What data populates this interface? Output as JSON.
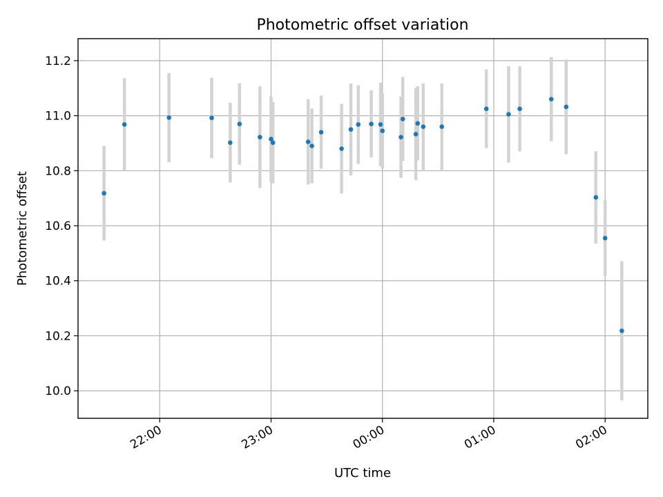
{
  "chart_data": {
    "type": "scatter",
    "title": "Photometric offset variation",
    "xlabel": "UTC time",
    "ylabel": "Photometric offset",
    "x_axis_type": "time",
    "x_range": [
      "21:16",
      "02:23"
    ],
    "ylim": [
      9.9,
      11.28
    ],
    "x_ticks": [
      "22:00",
      "23:00",
      "00:00",
      "01:00",
      "02:00"
    ],
    "y_ticks": [
      10.0,
      10.2,
      10.4,
      10.6,
      10.8,
      11.0,
      11.2
    ],
    "grid": true,
    "marker_color": "#1f77b4",
    "errorbar_color": "#d3d3d3",
    "points": [
      {
        "t": "21:30",
        "y": 10.718,
        "err": 0.172
      },
      {
        "t": "21:41",
        "y": 10.968,
        "err": 0.168
      },
      {
        "t": "22:05",
        "y": 10.993,
        "err": 0.162
      },
      {
        "t": "22:28",
        "y": 10.992,
        "err": 0.146
      },
      {
        "t": "22:38",
        "y": 10.902,
        "err": 0.145
      },
      {
        "t": "22:43",
        "y": 10.97,
        "err": 0.148
      },
      {
        "t": "22:54",
        "y": 10.922,
        "err": 0.185
      },
      {
        "t": "23:00",
        "y": 10.915,
        "err": 0.155
      },
      {
        "t": "23:01",
        "y": 10.902,
        "err": 0.148
      },
      {
        "t": "23:20",
        "y": 10.905,
        "err": 0.155
      },
      {
        "t": "23:22",
        "y": 10.89,
        "err": 0.136
      },
      {
        "t": "23:27",
        "y": 10.94,
        "err": 0.133
      },
      {
        "t": "23:38",
        "y": 10.88,
        "err": 0.163
      },
      {
        "t": "23:43",
        "y": 10.95,
        "err": 0.167
      },
      {
        "t": "23:47",
        "y": 10.968,
        "err": 0.143
      },
      {
        "t": "23:54",
        "y": 10.97,
        "err": 0.122
      },
      {
        "t": "23:59",
        "y": 10.968,
        "err": 0.152
      },
      {
        "t": "00:00",
        "y": 10.945,
        "err": 0.137
      },
      {
        "t": "00:10",
        "y": 10.922,
        "err": 0.148
      },
      {
        "t": "00:11",
        "y": 10.988,
        "err": 0.153
      },
      {
        "t": "00:18",
        "y": 10.933,
        "err": 0.167
      },
      {
        "t": "00:19",
        "y": 10.972,
        "err": 0.135
      },
      {
        "t": "00:22",
        "y": 10.96,
        "err": 0.157
      },
      {
        "t": "00:32",
        "y": 10.96,
        "err": 0.157
      },
      {
        "t": "00:56",
        "y": 11.025,
        "err": 0.143
      },
      {
        "t": "01:08",
        "y": 11.005,
        "err": 0.175
      },
      {
        "t": "01:14",
        "y": 11.025,
        "err": 0.155
      },
      {
        "t": "01:31",
        "y": 11.06,
        "err": 0.153
      },
      {
        "t": "01:39",
        "y": 11.032,
        "err": 0.172
      },
      {
        "t": "01:55",
        "y": 10.703,
        "err": 0.168
      },
      {
        "t": "02:00",
        "y": 10.555,
        "err": 0.138
      },
      {
        "t": "02:09",
        "y": 10.218,
        "err": 0.253
      }
    ]
  }
}
